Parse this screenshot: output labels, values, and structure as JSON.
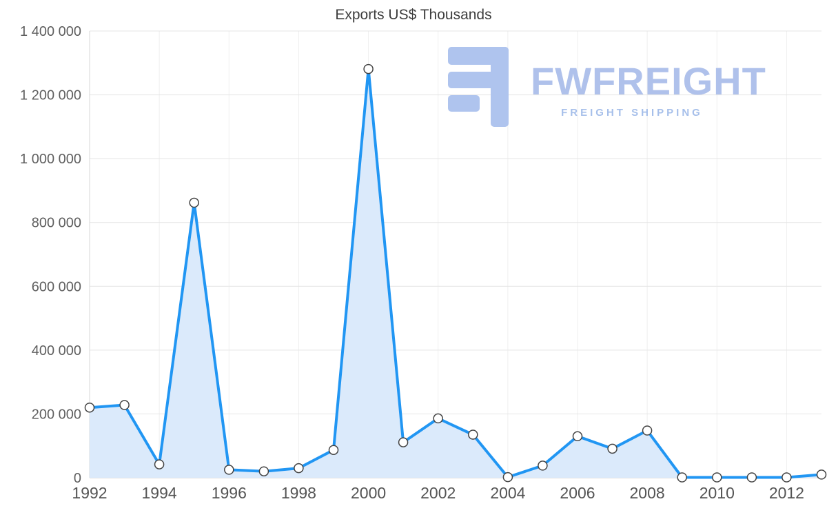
{
  "chart_data": {
    "type": "area",
    "title": "Exports US$ Thousands",
    "x": [
      1992,
      1993,
      1994,
      1995,
      1996,
      1997,
      1998,
      1999,
      2000,
      2001,
      2002,
      2003,
      2004,
      2005,
      2006,
      2007,
      2008,
      2009,
      2010,
      2011,
      2012,
      2013
    ],
    "values": [
      220000,
      228000,
      42000,
      862000,
      25000,
      20000,
      30000,
      87000,
      1281000,
      111000,
      186000,
      135000,
      2000,
      38000,
      130000,
      91000,
      148000,
      1000,
      1000,
      1000,
      1000,
      10000
    ],
    "xticks": [
      1992,
      1994,
      1996,
      1998,
      2000,
      2002,
      2004,
      2006,
      2008,
      2010,
      2012
    ],
    "ylim": [
      0,
      1400000
    ],
    "ytick_step": 200000,
    "ytick_format": "space-separated-thousands",
    "grid": true,
    "legend": false,
    "line_color": "#2196F3",
    "fill_color": "#DBEAFB",
    "marker_fill": "#FFFFFF",
    "marker_stroke": "#424242"
  },
  "watermark": {
    "brand": "FWFREIGHT",
    "tagline": "FREIGHT SHIPPING",
    "brand_color": "#AFC1EB",
    "tagline_color": "#A6BFEA",
    "icon_color": "#AFC4EE"
  }
}
